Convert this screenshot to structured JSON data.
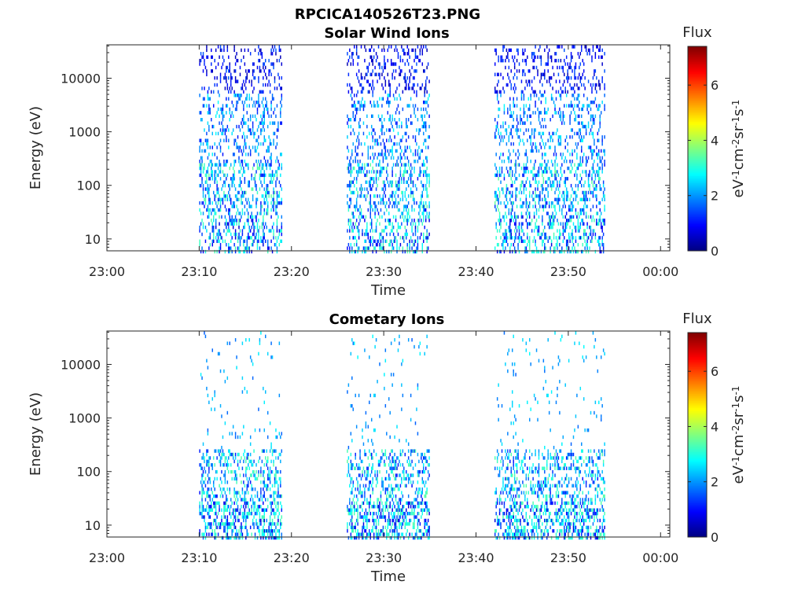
{
  "figure_title": "RPCICA140526T23.PNG",
  "chart_data": [
    {
      "type": "heatmap",
      "title": "Solar Wind Ions",
      "xlabel": "Time",
      "ylabel": "Energy (eV)",
      "x_ticks": [
        "23:00",
        "23:10",
        "23:20",
        "23:30",
        "23:40",
        "23:50",
        "00:00"
      ],
      "x_range_minutes": [
        0,
        61
      ],
      "y_scale": "log",
      "y_ticks": [
        "10",
        "100",
        "1000",
        "10000"
      ],
      "y_range_eV": [
        6,
        42000
      ],
      "colorbar": {
        "title": "Flux",
        "label": "eV-1cm-2sr-1s-1",
        "ticks": [
          "0",
          "2",
          "4",
          "6"
        ],
        "range": [
          0,
          7.4
        ],
        "colormap": "jet"
      },
      "active_intervals": [
        {
          "start": "23:10",
          "end": "23:19"
        },
        {
          "start": "23:26",
          "end": "23:35"
        },
        {
          "start": "23:42",
          "end": "23:54"
        }
      ],
      "seed": 11,
      "density": "high"
    },
    {
      "type": "heatmap",
      "title": "Cometary Ions",
      "xlabel": "Time",
      "ylabel": "Energy (eV)",
      "x_ticks": [
        "23:00",
        "23:10",
        "23:20",
        "23:30",
        "23:40",
        "23:50",
        "00:00"
      ],
      "x_range_minutes": [
        0,
        61
      ],
      "y_scale": "log",
      "y_ticks": [
        "10",
        "100",
        "1000",
        "10000"
      ],
      "y_range_eV": [
        6,
        42000
      ],
      "colorbar": {
        "title": "Flux",
        "label": "eV-1cm-2sr-1s-1",
        "ticks": [
          "0",
          "2",
          "4",
          "6"
        ],
        "range": [
          0,
          7.4
        ],
        "colormap": "jet"
      },
      "active_intervals": [
        {
          "start": "23:10",
          "end": "23:19"
        },
        {
          "start": "23:26",
          "end": "23:35"
        },
        {
          "start": "23:42",
          "end": "23:54"
        }
      ],
      "seed": 29,
      "density": "low"
    }
  ]
}
